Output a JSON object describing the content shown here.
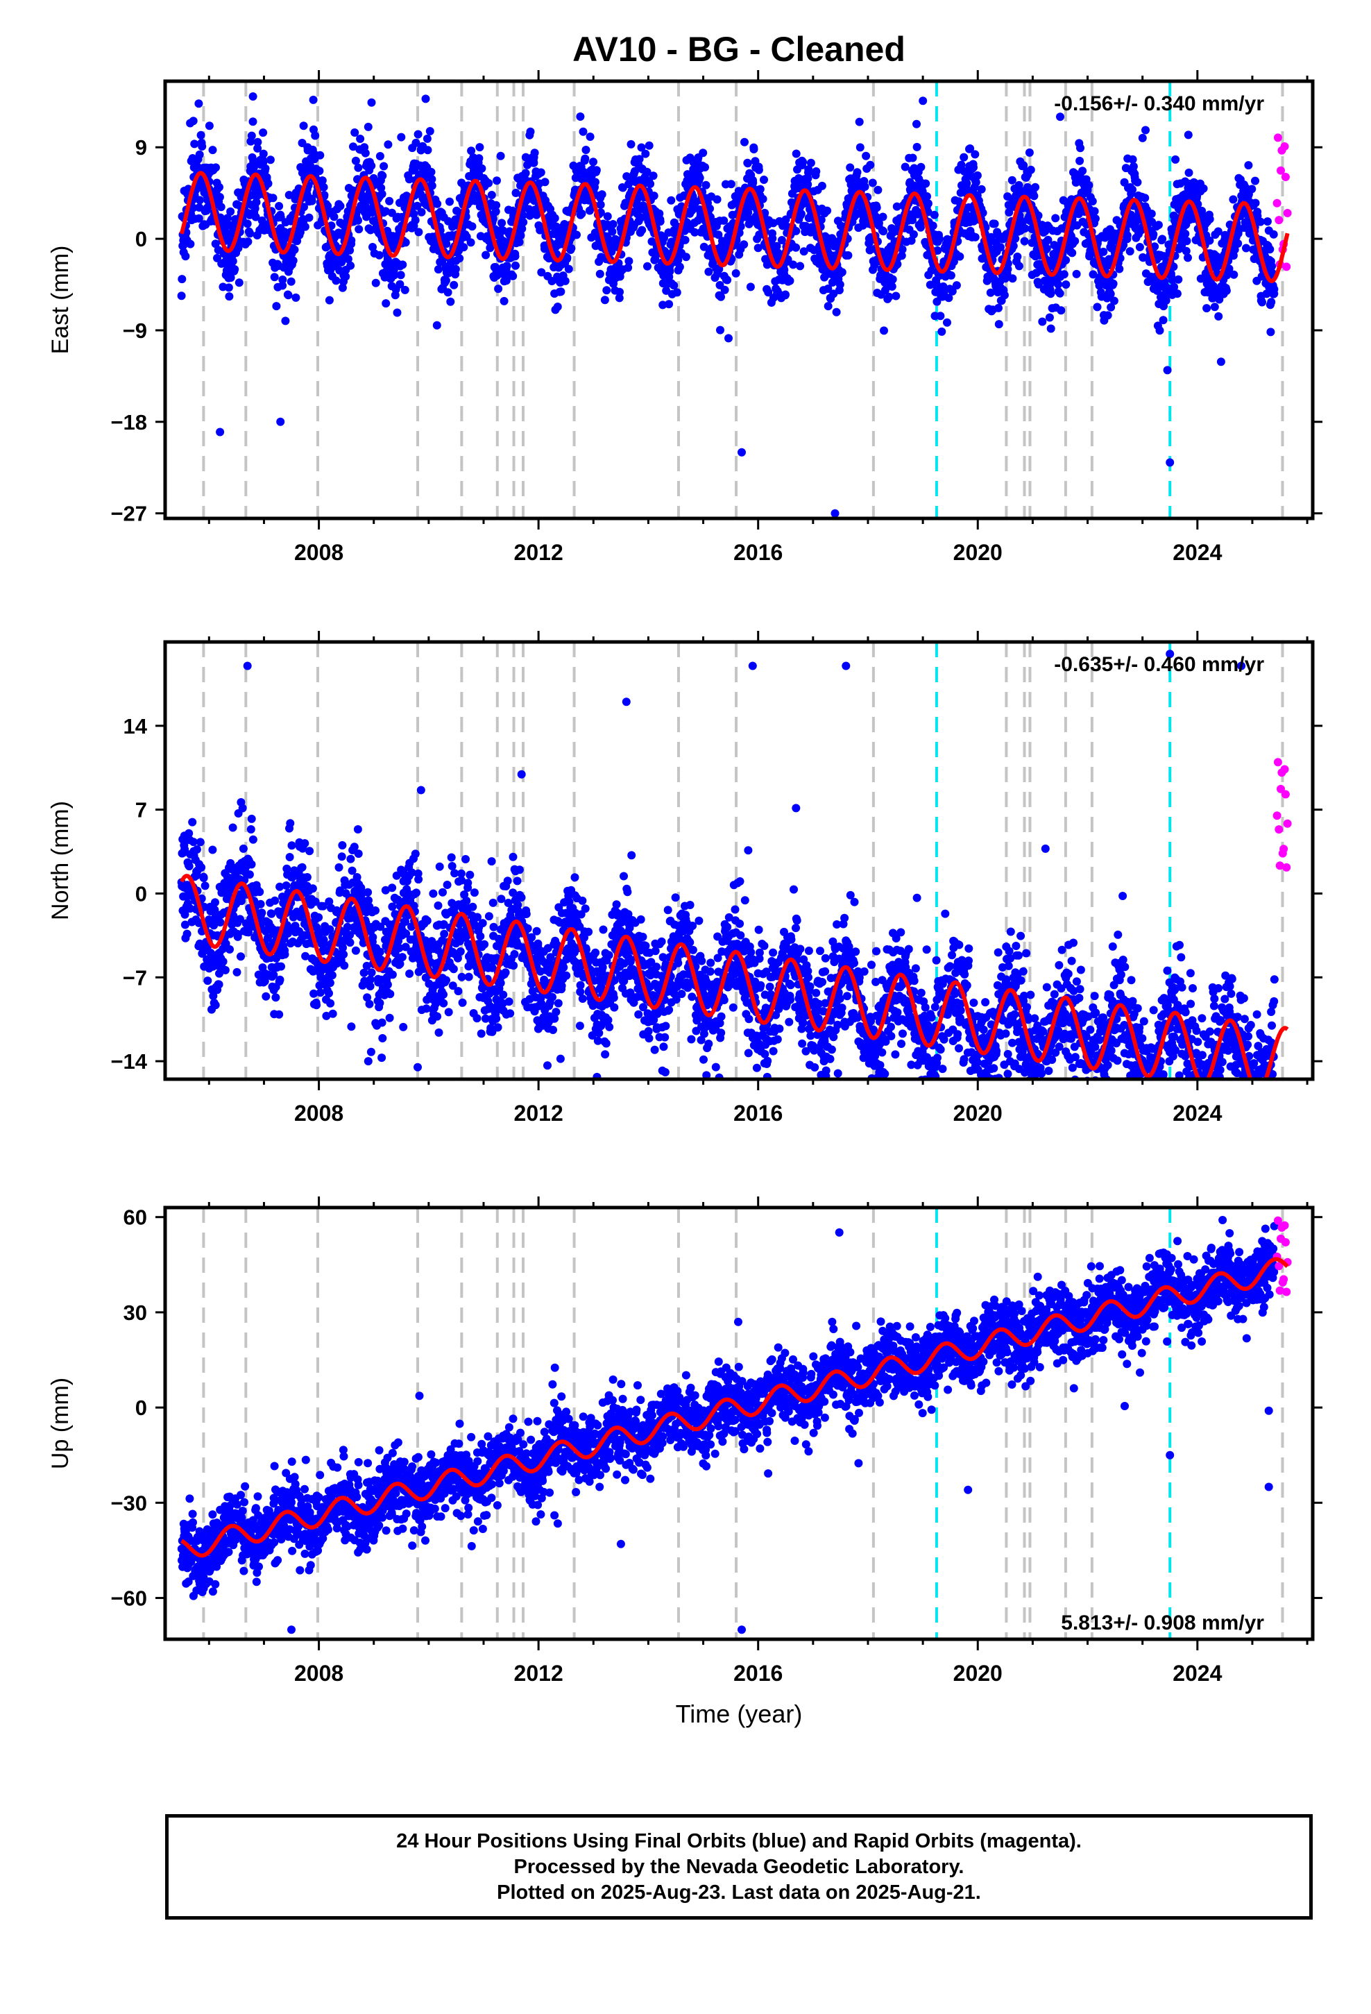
{
  "title": "AV10  - BG - Cleaned",
  "chart_data": [
    {
      "type": "scatter",
      "panel": "east",
      "ylabel": "East (mm)",
      "xlabel": "",
      "xlim": [
        2005.2,
        2026.1
      ],
      "ylim": [
        -27.5,
        15.5
      ],
      "yticks": [
        9,
        0,
        -9,
        -18,
        -27
      ],
      "xticks": [
        2008,
        2012,
        2016,
        2020,
        2024
      ],
      "annotation": "-0.156+/- 0.340 mm/yr",
      "annotation_position": "top-right",
      "rate_mm_per_yr": -0.156,
      "series": [
        {
          "name": "Final Orbits",
          "color": "#0000ff",
          "x_range": [
            2005.5,
            2025.4
          ],
          "seasonal_amplitude": 3.8,
          "noise_sd": 2.2
        },
        {
          "name": "Rapid Orbits",
          "color": "#ff00ff",
          "x_range": [
            2025.45,
            2025.64
          ],
          "values_range": [
            -3,
            10
          ]
        },
        {
          "name": "Model fit",
          "color": "#ff0000",
          "start_value": 0.5,
          "seasonal_amplitude": 3.8,
          "annual_phase_peak": 0.85
        }
      ],
      "outliers": [
        {
          "x": 2006.8,
          "y": 14
        },
        {
          "x": 2008.9,
          "y": 11
        },
        {
          "x": 2009.5,
          "y": 10
        },
        {
          "x": 2017.4,
          "y": -27
        },
        {
          "x": 2023.5,
          "y": -22
        },
        {
          "x": 2006.2,
          "y": -19
        },
        {
          "x": 2007.3,
          "y": -18
        },
        {
          "x": 2015.7,
          "y": -21
        },
        {
          "x": 2021.5,
          "y": 12
        }
      ]
    },
    {
      "type": "scatter",
      "panel": "north",
      "ylabel": "North (mm)",
      "xlabel": "",
      "xlim": [
        2005.2,
        2026.1
      ],
      "ylim": [
        -15.5,
        21
      ],
      "yticks": [
        14,
        7,
        0,
        -7,
        -14
      ],
      "xticks": [
        2008,
        2012,
        2016,
        2020,
        2024
      ],
      "annotation": "-0.635+/- 0.460 mm/yr",
      "annotation_position": "top-right",
      "rate_mm_per_yr": -0.635,
      "series": [
        {
          "name": "Final Orbits",
          "color": "#0000ff",
          "x_range": [
            2005.5,
            2025.4
          ],
          "seasonal_amplitude": 2.8,
          "noise_sd": 2.4
        },
        {
          "name": "Rapid Orbits",
          "color": "#ff00ff",
          "x_range": [
            2025.45,
            2025.64
          ],
          "values_range": [
            2,
            11
          ]
        },
        {
          "name": "Model fit",
          "color": "#ff0000",
          "start_value": 1,
          "seasonal_amplitude": 2.8,
          "annual_phase_peak": 0.6
        }
      ],
      "outliers": [
        {
          "x": 2006.7,
          "y": 19
        },
        {
          "x": 2015.9,
          "y": 19
        },
        {
          "x": 2017.6,
          "y": 19
        },
        {
          "x": 2009.8,
          "y": -14.5
        },
        {
          "x": 2008.9,
          "y": -14
        },
        {
          "x": 2014.3,
          "y": -12
        },
        {
          "x": 2023.5,
          "y": 20
        },
        {
          "x": 2024.8,
          "y": 19
        },
        {
          "x": 2013.6,
          "y": 16
        }
      ]
    },
    {
      "type": "scatter",
      "panel": "up",
      "ylabel": "Up (mm)",
      "xlabel": "Time (year)",
      "xlim": [
        2005.2,
        2026.1
      ],
      "ylim": [
        -73,
        63
      ],
      "yticks": [
        60,
        30,
        0,
        -30,
        -60
      ],
      "xticks": [
        2008,
        2012,
        2016,
        2020,
        2024
      ],
      "annotation": "5.813+/- 0.908 mm/yr",
      "annotation_position": "bottom-right",
      "rate_mm_per_yr": 5.813,
      "series": [
        {
          "name": "Final Orbits",
          "color": "#0000ff",
          "x_range": [
            2005.5,
            2025.4
          ],
          "seasonal_amplitude": 3.5,
          "noise_sd": 5.5
        },
        {
          "name": "Rapid Orbits",
          "color": "#ff00ff",
          "x_range": [
            2025.45,
            2025.64
          ],
          "values_range": [
            36,
            59
          ]
        },
        {
          "name": "Model fit",
          "color": "#ff0000",
          "start_value": -42,
          "end_value": 46,
          "seasonal_amplitude": 3.5,
          "annual_phase_peak": 0.4
        }
      ],
      "outliers": [
        {
          "x": 2015.7,
          "y": -70
        },
        {
          "x": 2023.5,
          "y": -15
        },
        {
          "x": 2025.3,
          "y": -25
        },
        {
          "x": 2025.3,
          "y": -1
        },
        {
          "x": 2007.5,
          "y": -70
        },
        {
          "x": 2013.5,
          "y": -43
        }
      ]
    }
  ],
  "event_lines": {
    "gray": [
      2005.9,
      2006.67,
      2007.98,
      2009.8,
      2010.6,
      2011.25,
      2011.55,
      2011.72,
      2012.65,
      2014.55,
      2015.6,
      2018.1,
      2020.52,
      2020.85,
      2020.95,
      2021.6,
      2022.08,
      2025.55
    ],
    "cyan": [
      2019.25,
      2023.5
    ],
    "gray_color": "#c4c4c4",
    "cyan_color": "#00e5f0"
  },
  "footer": {
    "line1": "24 Hour Positions Using Final Orbits (blue) and Rapid Orbits (magenta).",
    "line2": "Processed by the Nevada Geodetic Laboratory.",
    "line3": "Plotted on 2025-Aug-23. Last data on 2025-Aug-21."
  }
}
